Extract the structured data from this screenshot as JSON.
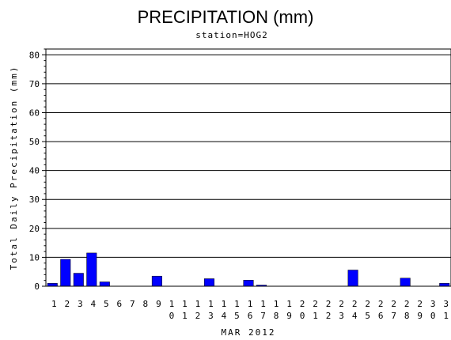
{
  "chart_data": {
    "type": "bar",
    "title": "PRECIPITATION (mm)",
    "subtitle": "station=HOG2",
    "xlabel": "MAR 2012",
    "ylabel": "Total Daily Precipitation (mm)",
    "ylim": [
      0,
      82
    ],
    "yticks": [
      0,
      10,
      20,
      30,
      40,
      50,
      60,
      70,
      80
    ],
    "grid": true,
    "bar_color": "#0000ff",
    "categories": [
      "1",
      "2",
      "3",
      "4",
      "5",
      "6",
      "7",
      "8",
      "9",
      "10",
      "11",
      "12",
      "13",
      "14",
      "15",
      "16",
      "17",
      "18",
      "19",
      "20",
      "21",
      "22",
      "23",
      "24",
      "25",
      "26",
      "27",
      "28",
      "29",
      "30",
      "31"
    ],
    "values": [
      1.0,
      9.3,
      4.5,
      11.5,
      1.5,
      0,
      0,
      0,
      3.5,
      0,
      0,
      0,
      2.6,
      0,
      0,
      2.1,
      0.4,
      0,
      0,
      0,
      0,
      0,
      0,
      5.6,
      0,
      0,
      0,
      2.8,
      0,
      0,
      1.0
    ]
  }
}
